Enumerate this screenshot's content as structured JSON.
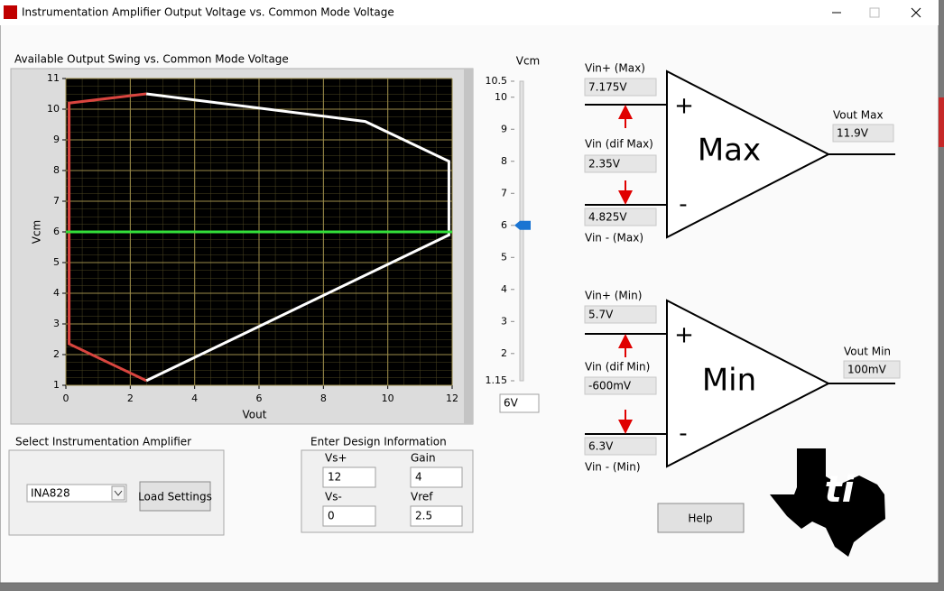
{
  "window": {
    "title": "Instrumentation Amplifier Output Voltage vs. Common Mode Voltage"
  },
  "chart_data": {
    "type": "line",
    "title": "Available Output Swing vs. Common Mode Voltage",
    "x_label": "Vout",
    "y_label": "Vcm",
    "xlim": [
      0,
      12
    ],
    "ylim": [
      1,
      11
    ],
    "xticks": [
      0,
      2,
      4,
      6,
      8,
      10,
      12
    ],
    "yticks": [
      1,
      2,
      3,
      4,
      5,
      6,
      7,
      8,
      9,
      10,
      11
    ],
    "grid": true,
    "series": [
      {
        "color": "#d9453f",
        "x": [
          2.5,
          0.1,
          0.1,
          2.5
        ],
        "values": [
          10.5,
          10.2,
          2.35,
          1.15
        ]
      },
      {
        "color": "#ffffff",
        "x": [
          2.5,
          9.3,
          11.9,
          11.9,
          2.5
        ],
        "values": [
          10.5,
          9.6,
          8.3,
          5.9,
          1.15
        ]
      },
      {
        "color": "#33e03a",
        "x": [
          0,
          12
        ],
        "values": [
          6,
          6
        ]
      }
    ]
  },
  "vcm_slider": {
    "label": "Vcm",
    "range": [
      1.15,
      10.5
    ],
    "ticks": [
      1.15,
      2,
      3,
      4,
      5,
      6,
      7,
      8,
      9,
      10,
      10.5
    ],
    "value": 6,
    "value_label": "6V"
  },
  "max_amp": {
    "name": "Max",
    "plus": "+",
    "minus": "-",
    "vin_plus_label": "Vin+ (Max)",
    "vin_plus": "7.175V",
    "vin_dif_label": "Vin (dif Max)",
    "vin_dif": "2.35V",
    "vin_minus": "4.825V",
    "vin_minus_label": "Vin - (Max)",
    "vout_label": "Vout Max",
    "vout": "11.9V"
  },
  "min_amp": {
    "name": "Min",
    "plus": "+",
    "minus": "-",
    "vin_plus_label": "Vin+ (Min)",
    "vin_plus": "5.7V",
    "vin_dif_label": "Vin (dif Min)",
    "vin_dif": "-600mV",
    "vin_minus": "6.3V",
    "vin_minus_label": "Vin - (Min)",
    "vout_label": "Vout Min",
    "vout": "100mV"
  },
  "select_amp": {
    "label": "Select Instrumentation Amplifier",
    "value": "INA828",
    "button": "Load Settings"
  },
  "design": {
    "label": "Enter Design Information",
    "vs_plus_label": "Vs+",
    "vs_plus": 12,
    "gain_label": "Gain",
    "gain": 4,
    "vs_minus_label": "Vs-",
    "vs_minus": 0,
    "vref_label": "Vref",
    "vref": 2.5
  },
  "help_button": "Help"
}
